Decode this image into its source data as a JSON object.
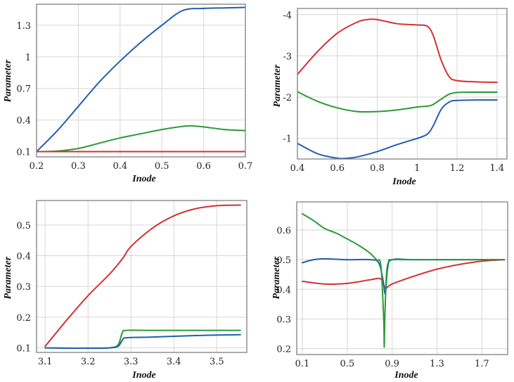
{
  "chart_data": [
    {
      "type": "line",
      "xlabel": "Inode",
      "ylabel": "Parameter",
      "xlim": [
        0.2,
        0.7
      ],
      "ylim": [
        0.05,
        1.5
      ],
      "xticks": [
        0.2,
        0.3,
        0.4,
        0.5,
        0.6,
        0.7
      ],
      "xtick_labels": [
        "0.2",
        "0.3",
        "0.4",
        "0.5",
        "0.6",
        "0.7"
      ],
      "yticks": [
        0.1,
        0.4,
        0.7,
        1.0,
        1.3
      ],
      "ytick_labels": [
        "0.1",
        "0.4",
        "0.7",
        "1",
        "1.3"
      ],
      "grid": true,
      "series": [
        {
          "color": "#1f5fb0",
          "x": [
            0.2,
            0.25,
            0.3,
            0.35,
            0.4,
            0.45,
            0.5,
            0.55,
            0.6,
            0.65,
            0.7
          ],
          "y": [
            0.1,
            0.3,
            0.53,
            0.76,
            0.96,
            1.14,
            1.3,
            1.44,
            1.46,
            1.465,
            1.47
          ]
        },
        {
          "color": "#2a9a38",
          "x": [
            0.2,
            0.25,
            0.3,
            0.35,
            0.4,
            0.45,
            0.5,
            0.55,
            0.57,
            0.6,
            0.65,
            0.7
          ],
          "y": [
            0.1,
            0.105,
            0.13,
            0.18,
            0.23,
            0.27,
            0.31,
            0.34,
            0.345,
            0.335,
            0.31,
            0.3
          ]
        },
        {
          "color": "#d63030",
          "x": [
            0.2,
            0.7
          ],
          "y": [
            0.1,
            0.1
          ]
        }
      ]
    },
    {
      "type": "line",
      "xlabel": "Inode",
      "ylabel": "Parameter",
      "xlim": [
        0.4,
        1.45
      ],
      "ylim": [
        -0.5,
        -4.15
      ],
      "xticks": [
        0.4,
        0.6,
        0.8,
        1.0,
        1.2,
        1.4
      ],
      "xtick_labels": [
        "0.4",
        "0.6",
        "0.8",
        "1",
        "1.2",
        "1.4"
      ],
      "yticks": [
        -1,
        -2,
        -3,
        -4
      ],
      "ytick_labels": [
        "-1",
        "-2",
        "-3",
        "-4"
      ],
      "grid": true,
      "series": [
        {
          "color": "#d63030",
          "x": [
            0.4,
            0.5,
            0.6,
            0.7,
            0.75,
            0.8,
            0.9,
            1.0,
            1.05,
            1.08,
            1.12,
            1.16,
            1.2,
            1.3,
            1.4
          ],
          "y": [
            -2.55,
            -3.1,
            -3.55,
            -3.82,
            -3.88,
            -3.88,
            -3.78,
            -3.75,
            -3.72,
            -3.5,
            -2.9,
            -2.5,
            -2.4,
            -2.37,
            -2.36
          ]
        },
        {
          "color": "#2a9a38",
          "x": [
            0.4,
            0.5,
            0.6,
            0.7,
            0.8,
            0.9,
            1.0,
            1.07,
            1.12,
            1.18,
            1.3,
            1.4
          ],
          "y": [
            -2.13,
            -1.9,
            -1.74,
            -1.65,
            -1.65,
            -1.69,
            -1.76,
            -1.8,
            -1.95,
            -2.1,
            -2.12,
            -2.12
          ]
        },
        {
          "color": "#1f5fb0",
          "x": [
            0.4,
            0.5,
            0.6,
            0.65,
            0.7,
            0.8,
            0.9,
            1.0,
            1.05,
            1.08,
            1.12,
            1.16,
            1.2,
            1.3,
            1.4
          ],
          "y": [
            -0.88,
            -0.63,
            -0.52,
            -0.52,
            -0.55,
            -0.68,
            -0.85,
            -1.0,
            -1.1,
            -1.3,
            -1.7,
            -1.88,
            -1.92,
            -1.93,
            -1.93
          ]
        }
      ]
    },
    {
      "type": "line",
      "xlabel": "Inode",
      "ylabel": "Parameter",
      "xlim": [
        3.08,
        3.57
      ],
      "ylim": [
        0.085,
        0.58
      ],
      "xticks": [
        3.1,
        3.2,
        3.3,
        3.4,
        3.5
      ],
      "xtick_labels": [
        "3.1",
        "3.2",
        "3.3",
        "3.4",
        "3.5"
      ],
      "yticks": [
        0.1,
        0.2,
        0.3,
        0.4,
        0.5
      ],
      "ytick_labels": [
        "0.1",
        "0.2",
        "0.3",
        "0.4",
        "0.5"
      ],
      "grid": true,
      "series": [
        {
          "color": "#d63030",
          "x": [
            3.1,
            3.15,
            3.2,
            3.25,
            3.28,
            3.3,
            3.35,
            3.4,
            3.45,
            3.5,
            3.555
          ],
          "y": [
            0.105,
            0.19,
            0.27,
            0.34,
            0.39,
            0.43,
            0.49,
            0.53,
            0.553,
            0.563,
            0.565
          ]
        },
        {
          "color": "#2a9a38",
          "x": [
            3.1,
            3.15,
            3.2,
            3.25,
            3.27,
            3.28,
            3.29,
            3.35,
            3.45,
            3.555
          ],
          "y": [
            0.1,
            0.099,
            0.099,
            0.1,
            0.11,
            0.15,
            0.157,
            0.157,
            0.157,
            0.157
          ]
        },
        {
          "color": "#1f5fb0",
          "x": [
            3.1,
            3.15,
            3.2,
            3.25,
            3.27,
            3.28,
            3.29,
            3.35,
            3.45,
            3.555
          ],
          "y": [
            0.1,
            0.099,
            0.099,
            0.1,
            0.105,
            0.125,
            0.133,
            0.135,
            0.14,
            0.143
          ]
        }
      ]
    },
    {
      "type": "line",
      "xlabel": "Inode",
      "ylabel": "Parameter",
      "xlim": [
        0.05,
        1.93
      ],
      "ylim": [
        0.18,
        0.695
      ],
      "xticks": [
        0.1,
        0.5,
        0.9,
        1.3,
        1.7
      ],
      "xtick_labels": [
        "0.1",
        "0.5",
        "0.9",
        "1.3",
        "1.7"
      ],
      "yticks": [
        0.2,
        0.3,
        0.4,
        0.5,
        0.6
      ],
      "ytick_labels": [
        "0.2",
        "0.3",
        "0.4",
        "0.5",
        "0.6"
      ],
      "grid": true,
      "series": [
        {
          "color": "#d63030",
          "x": [
            0.1,
            0.3,
            0.5,
            0.7,
            0.8,
            0.84,
            0.9,
            1.1,
            1.3,
            1.5,
            1.7,
            1.9
          ],
          "y": [
            0.427,
            0.418,
            0.42,
            0.432,
            0.435,
            0.405,
            0.418,
            0.445,
            0.468,
            0.484,
            0.495,
            0.5
          ]
        },
        {
          "color": "#1f5fb0",
          "x": [
            0.1,
            0.2,
            0.3,
            0.5,
            0.7,
            0.78,
            0.82,
            0.84,
            0.86,
            0.9,
            1.1,
            1.5,
            1.9
          ],
          "y": [
            0.49,
            0.5,
            0.503,
            0.5,
            0.5,
            0.49,
            0.43,
            0.385,
            0.47,
            0.5,
            0.5,
            0.5,
            0.5
          ]
        },
        {
          "color": "#2a9a38",
          "x": [
            0.1,
            0.2,
            0.3,
            0.4,
            0.5,
            0.6,
            0.7,
            0.76,
            0.8,
            0.825,
            0.83,
            0.835,
            0.85,
            0.87,
            0.9,
            1.1,
            1.5,
            1.9
          ],
          "y": [
            0.655,
            0.632,
            0.605,
            0.59,
            0.57,
            0.549,
            0.523,
            0.5,
            0.48,
            0.3,
            0.205,
            0.3,
            0.45,
            0.495,
            0.5,
            0.5,
            0.5,
            0.5
          ]
        }
      ]
    }
  ]
}
